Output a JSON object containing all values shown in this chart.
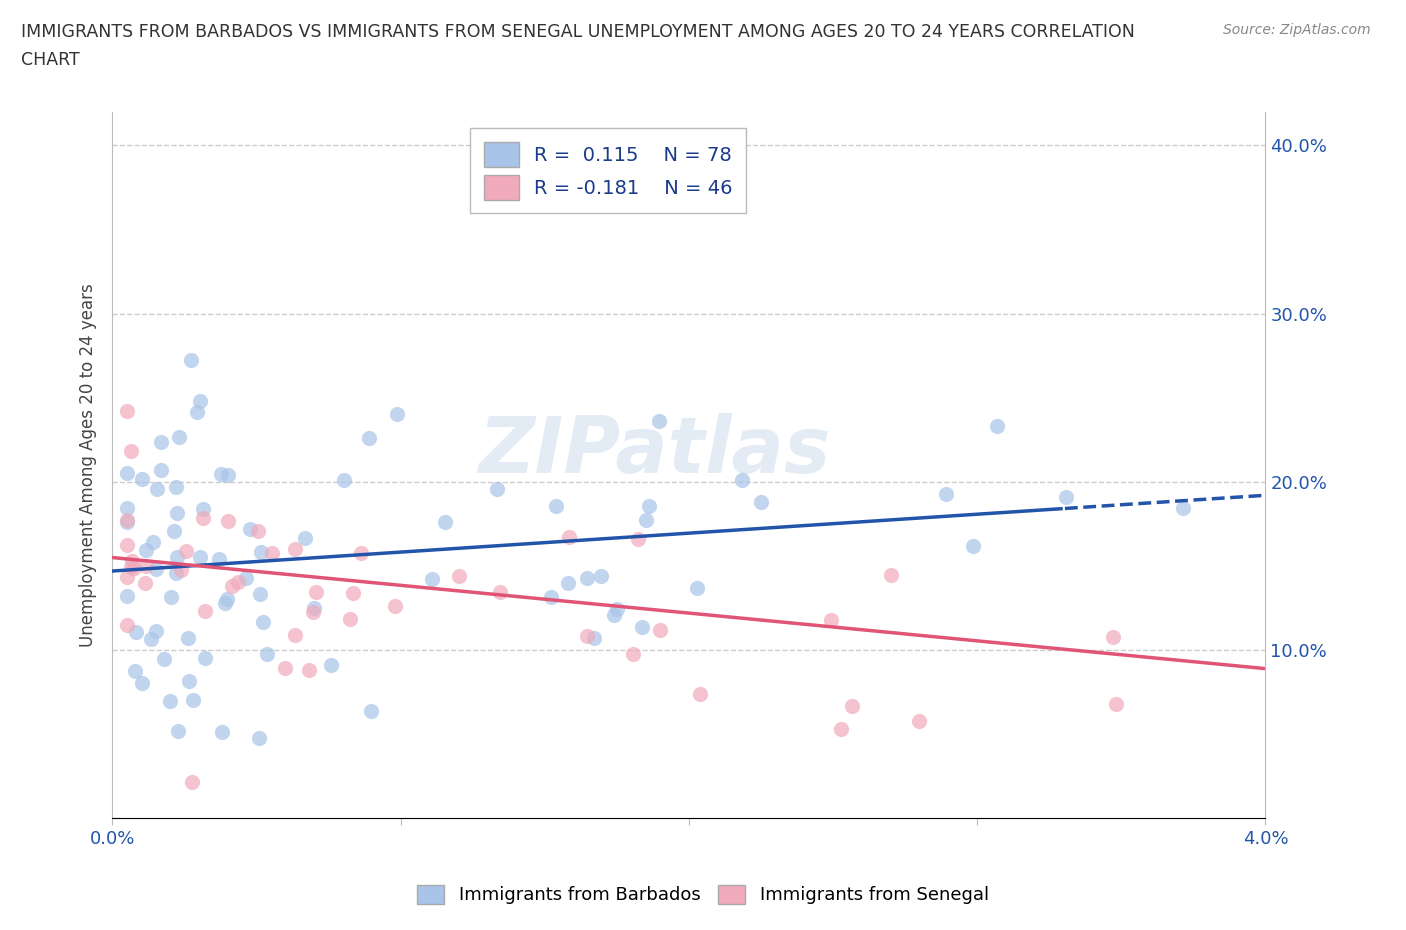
{
  "title_line1": "IMMIGRANTS FROM BARBADOS VS IMMIGRANTS FROM SENEGAL UNEMPLOYMENT AMONG AGES 20 TO 24 YEARS CORRELATION",
  "title_line2": "CHART",
  "source": "Source: ZipAtlas.com",
  "ylabel": "Unemployment Among Ages 20 to 24 years",
  "x_min": 0.0,
  "x_max": 0.04,
  "y_min": 0.0,
  "y_max": 0.42,
  "barbados_color": "#a8c4e8",
  "senegal_color": "#f0aabb",
  "barbados_line_color": "#2255aa",
  "senegal_line_color": "#e05575",
  "barbados_R": 0.115,
  "barbados_N": 78,
  "senegal_R": -0.181,
  "senegal_N": 46,
  "legend_R_color": "#1a3a8a",
  "watermark_text": "ZIPatlas",
  "background_color": "#ffffff",
  "grid_color": "#cccccc",
  "tick_label_color": "#2255aa",
  "title_color": "#333333",
  "source_color": "#888888"
}
